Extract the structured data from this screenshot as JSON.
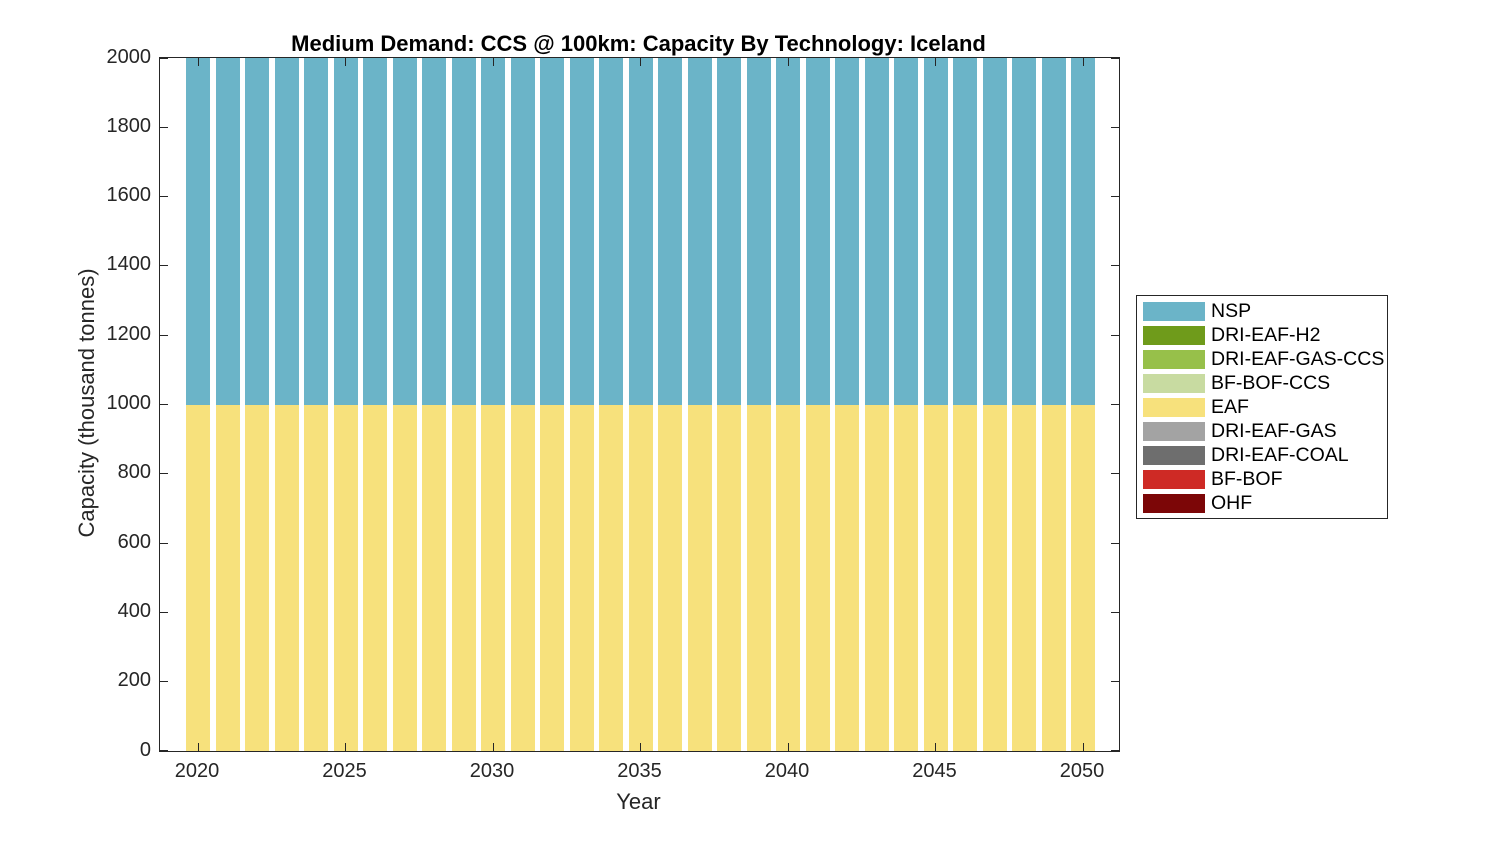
{
  "chart_data": {
    "type": "bar",
    "stacked": true,
    "title": "Medium Demand: CCS @ 100km: Capacity By Technology: Iceland",
    "xlabel": "Year",
    "ylabel": "Capacity (thousand tonnes)",
    "ylim": [
      0,
      2000
    ],
    "grid": false,
    "x_ticks": [
      2020,
      2025,
      2030,
      2035,
      2040,
      2045,
      2050
    ],
    "y_ticks": [
      0,
      200,
      400,
      600,
      800,
      1000,
      1200,
      1400,
      1600,
      1800,
      2000
    ],
    "x": [
      2020,
      2021,
      2022,
      2023,
      2024,
      2025,
      2026,
      2027,
      2028,
      2029,
      2030,
      2031,
      2032,
      2033,
      2034,
      2035,
      2036,
      2037,
      2038,
      2039,
      2040,
      2041,
      2042,
      2043,
      2044,
      2045,
      2046,
      2047,
      2048,
      2049,
      2050
    ],
    "series": [
      {
        "name": "EAF",
        "color": "#f7e17c",
        "values": [
          1000,
          1000,
          1000,
          1000,
          1000,
          1000,
          1000,
          1000,
          1000,
          1000,
          1000,
          1000,
          1000,
          1000,
          1000,
          1000,
          1000,
          1000,
          1000,
          1000,
          1000,
          1000,
          1000,
          1000,
          1000,
          1000,
          1000,
          1000,
          1000,
          1000,
          1000
        ]
      },
      {
        "name": "NSP",
        "color": "#6bb4c8",
        "values": [
          1000,
          1000,
          1000,
          1000,
          1000,
          1000,
          1000,
          1000,
          1000,
          1000,
          1000,
          1000,
          1000,
          1000,
          1000,
          1000,
          1000,
          1000,
          1000,
          1000,
          1000,
          1000,
          1000,
          1000,
          1000,
          1000,
          1000,
          1000,
          1000,
          1000,
          1000
        ]
      }
    ],
    "legend": {
      "position": "right",
      "entries": [
        {
          "label": "NSP",
          "color": "#6bb4c8"
        },
        {
          "label": "DRI-EAF-H2",
          "color": "#6f9b1b"
        },
        {
          "label": "DRI-EAF-GAS-CCS",
          "color": "#97c04a"
        },
        {
          "label": "BF-BOF-CCS",
          "color": "#c8dba1"
        },
        {
          "label": "EAF",
          "color": "#f7e17c"
        },
        {
          "label": "DRI-EAF-GAS",
          "color": "#a3a3a3"
        },
        {
          "label": "DRI-EAF-COAL",
          "color": "#6e6e6e"
        },
        {
          "label": "BF-BOF",
          "color": "#ce2a25"
        },
        {
          "label": "OHF",
          "color": "#7c0607"
        }
      ]
    },
    "axis_color": "#262626"
  }
}
